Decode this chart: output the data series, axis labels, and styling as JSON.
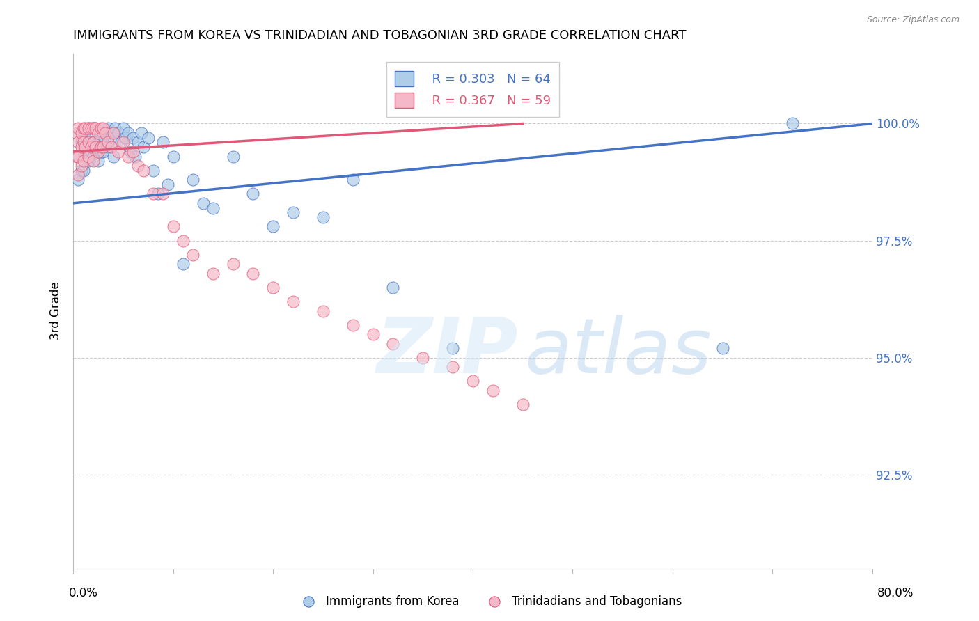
{
  "title": "IMMIGRANTS FROM KOREA VS TRINIDADIAN AND TOBAGONIAN 3RD GRADE CORRELATION CHART",
  "source": "Source: ZipAtlas.com",
  "ylabel": "3rd Grade",
  "ytick_labels": [
    "100.0%",
    "97.5%",
    "95.0%",
    "92.5%"
  ],
  "ytick_values": [
    1.0,
    0.975,
    0.95,
    0.925
  ],
  "xlim": [
    0.0,
    0.8
  ],
  "ylim": [
    0.905,
    1.015
  ],
  "legend_blue_r": "R = 0.303",
  "legend_blue_n": "N = 64",
  "legend_pink_r": "R = 0.367",
  "legend_pink_n": "N = 59",
  "blue_color": "#aecde8",
  "pink_color": "#f4b8c8",
  "blue_line_color": "#4472c4",
  "pink_line_color": "#e05878",
  "legend_label_blue": "Immigrants from Korea",
  "legend_label_pink": "Trinidadians and Tobagonians",
  "blue_x": [
    0.005,
    0.005,
    0.008,
    0.008,
    0.01,
    0.01,
    0.01,
    0.012,
    0.012,
    0.015,
    0.015,
    0.015,
    0.018,
    0.018,
    0.02,
    0.02,
    0.02,
    0.022,
    0.022,
    0.025,
    0.025,
    0.025,
    0.028,
    0.028,
    0.03,
    0.03,
    0.032,
    0.035,
    0.035,
    0.038,
    0.04,
    0.04,
    0.042,
    0.045,
    0.048,
    0.05,
    0.052,
    0.055,
    0.058,
    0.06,
    0.062,
    0.065,
    0.068,
    0.07,
    0.075,
    0.08,
    0.085,
    0.09,
    0.095,
    0.1,
    0.11,
    0.12,
    0.13,
    0.14,
    0.16,
    0.18,
    0.2,
    0.22,
    0.25,
    0.28,
    0.32,
    0.38,
    0.65,
    0.72
  ],
  "blue_y": [
    0.993,
    0.988,
    0.996,
    0.99,
    0.998,
    0.994,
    0.99,
    0.997,
    0.993,
    0.999,
    0.996,
    0.992,
    0.998,
    0.994,
    0.999,
    0.996,
    0.993,
    0.999,
    0.995,
    0.998,
    0.995,
    0.992,
    0.997,
    0.994,
    0.998,
    0.994,
    0.997,
    0.999,
    0.995,
    0.998,
    0.997,
    0.993,
    0.999,
    0.998,
    0.996,
    0.999,
    0.997,
    0.998,
    0.994,
    0.997,
    0.993,
    0.996,
    0.998,
    0.995,
    0.997,
    0.99,
    0.985,
    0.996,
    0.987,
    0.993,
    0.97,
    0.988,
    0.983,
    0.982,
    0.993,
    0.985,
    0.978,
    0.981,
    0.98,
    0.988,
    0.965,
    0.952,
    0.952,
    1.0
  ],
  "pink_x": [
    0.003,
    0.003,
    0.005,
    0.005,
    0.005,
    0.005,
    0.008,
    0.008,
    0.008,
    0.01,
    0.01,
    0.01,
    0.012,
    0.012,
    0.015,
    0.015,
    0.015,
    0.018,
    0.018,
    0.02,
    0.02,
    0.02,
    0.022,
    0.022,
    0.025,
    0.025,
    0.028,
    0.028,
    0.03,
    0.03,
    0.032,
    0.035,
    0.038,
    0.04,
    0.045,
    0.05,
    0.055,
    0.06,
    0.065,
    0.07,
    0.08,
    0.09,
    0.1,
    0.11,
    0.12,
    0.14,
    0.16,
    0.18,
    0.2,
    0.22,
    0.25,
    0.28,
    0.3,
    0.32,
    0.35,
    0.38,
    0.4,
    0.42,
    0.45
  ],
  "pink_y": [
    0.998,
    0.993,
    0.999,
    0.996,
    0.993,
    0.989,
    0.998,
    0.995,
    0.991,
    0.999,
    0.996,
    0.992,
    0.999,
    0.995,
    0.999,
    0.996,
    0.993,
    0.999,
    0.995,
    0.999,
    0.996,
    0.992,
    0.999,
    0.995,
    0.998,
    0.994,
    0.999,
    0.995,
    0.999,
    0.995,
    0.998,
    0.996,
    0.995,
    0.998,
    0.994,
    0.996,
    0.993,
    0.994,
    0.991,
    0.99,
    0.985,
    0.985,
    0.978,
    0.975,
    0.972,
    0.968,
    0.97,
    0.968,
    0.965,
    0.962,
    0.96,
    0.957,
    0.955,
    0.953,
    0.95,
    0.948,
    0.945,
    0.943,
    0.94
  ],
  "blue_trendline_x": [
    0.0,
    0.8
  ],
  "blue_trendline_y": [
    0.983,
    1.0
  ],
  "pink_trendline_x": [
    0.0,
    0.45
  ],
  "pink_trendline_y": [
    0.994,
    1.0
  ]
}
